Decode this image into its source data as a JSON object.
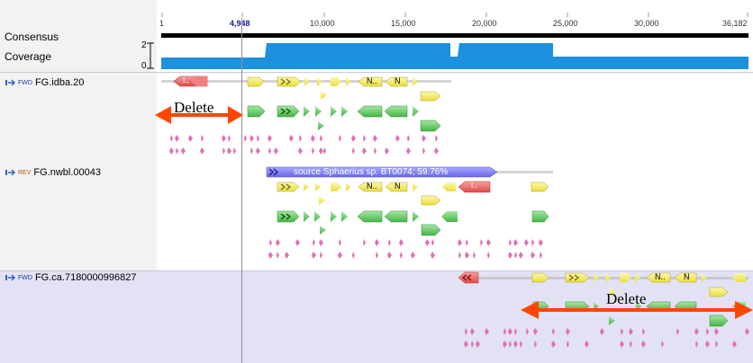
{
  "ruler": {
    "ticks": [
      "1",
      "4,948",
      "10,000",
      "15,000",
      "20,000",
      "25,000",
      "30,000",
      "36,182"
    ],
    "cursor_position": "4,948"
  },
  "tracks": {
    "consensus_label": "Consensus",
    "coverage_label": "Coverage",
    "coverage_max": "2",
    "coverage_min": "0"
  },
  "sequences": [
    {
      "direction": "FWD",
      "name": "FG.idba.20"
    },
    {
      "direction": "REV",
      "name": "FG.nwbl.00043",
      "source_annotation": "source Sphaerius sp. BT0074; 59.76%"
    },
    {
      "direction": "FWD",
      "name": "FG.ca.7180000996827"
    }
  ],
  "annotations": {
    "delete_top": "Delete",
    "delete_bottom": "Delete"
  },
  "feature_labels": {
    "n": "N",
    "n_dots": "N..",
    "i": "I.."
  },
  "colors": {
    "coverage": "#1e90e0",
    "cds_yellow": "#f6f07a",
    "gene_green": "#6fcf6f",
    "repeat_pink": "#e36fb6",
    "source_blue": "#7f7fee",
    "highlight_row": "#e0e0f4",
    "delete_arrow": "#ff4500"
  }
}
